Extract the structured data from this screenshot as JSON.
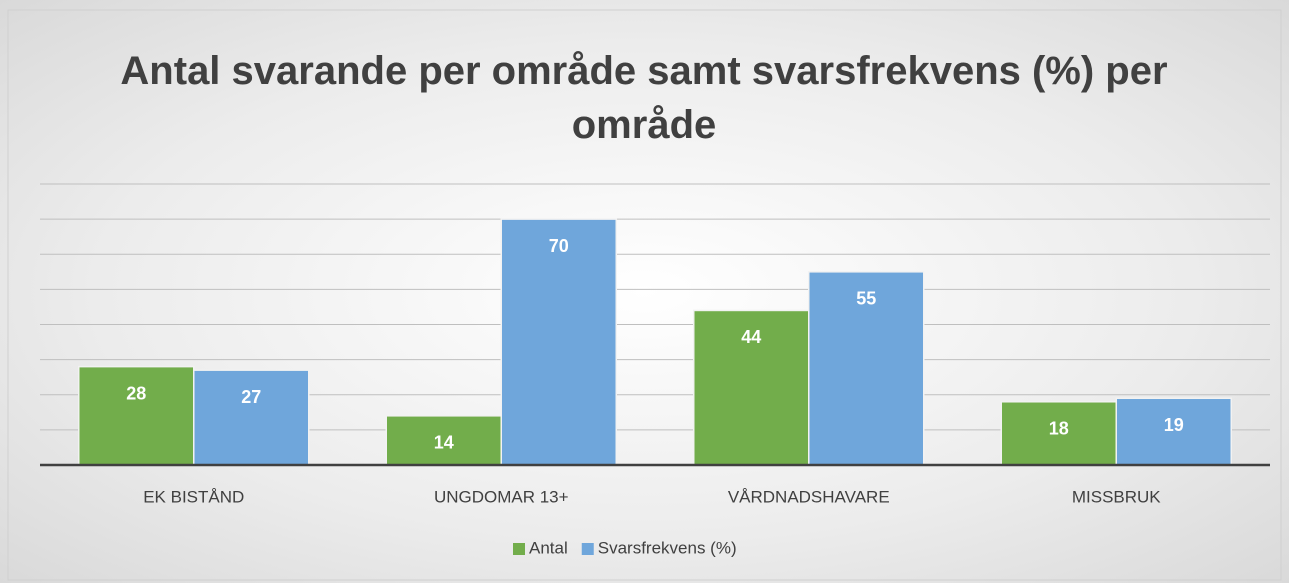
{
  "chart_data": {
    "type": "bar",
    "title": "Antal svarande per område samt svarsfrekvens (%) per område",
    "categories": [
      "EK BISTÅND",
      "UNGDOMAR 13+",
      "VÅRDNADSHAVARE",
      "MISSBRUK"
    ],
    "series": [
      {
        "name": "Antal",
        "color": "#72ad4b",
        "values": [
          28,
          14,
          44,
          18
        ]
      },
      {
        "name": "Svarsfrekvens (%)",
        "color": "#6fa6db",
        "values": [
          27,
          70,
          55,
          19
        ]
      }
    ],
    "ylim": [
      0,
      80
    ],
    "yticks": [
      0,
      10,
      20,
      30,
      40,
      50,
      60,
      70,
      80
    ],
    "grid": true,
    "legend": "bottom"
  }
}
